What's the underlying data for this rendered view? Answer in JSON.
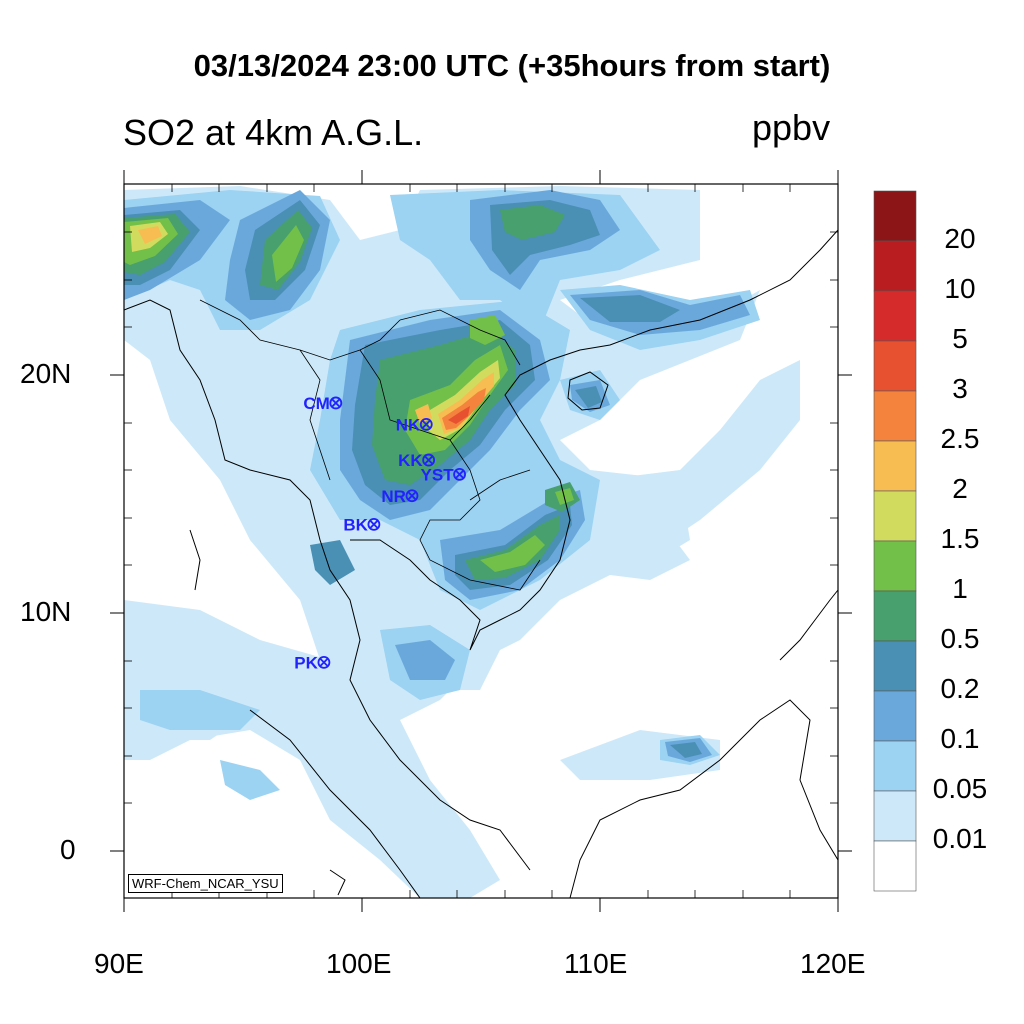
{
  "title": "03/13/2024 23:00 UTC (+35hours from start)",
  "subtitle": "SO2 at 4km A.G.L.",
  "units": "ppbv",
  "credit": "WRF-Chem_NCAR_YSU",
  "lat_labels": [
    "20N",
    "10N",
    "0"
  ],
  "lon_labels": [
    "90E",
    "100E",
    "110E",
    "120E"
  ],
  "colorbar": {
    "labels": [
      "20",
      "10",
      "5",
      "3",
      "2.5",
      "2",
      "1.5",
      "1",
      "0.5",
      "0.2",
      "0.1",
      "0.05",
      "0.01"
    ],
    "colors": [
      "#8b1517",
      "#b91d20",
      "#d62b2b",
      "#e8512f",
      "#f3833d",
      "#f7bd52",
      "#d1dc5e",
      "#72bf4a",
      "#47a06d",
      "#4a90b5",
      "#6aa8dc",
      "#9cd2f2",
      "#cde9f9",
      "#ffffff"
    ]
  },
  "stations": [
    {
      "name": "CM",
      "lon": 98.9,
      "lat": 18.8
    },
    {
      "name": "NK",
      "lon": 102.7,
      "lat": 17.9
    },
    {
      "name": "KK",
      "lon": 102.8,
      "lat": 16.4
    },
    {
      "name": "YST",
      "lon": 104.1,
      "lat": 15.8
    },
    {
      "name": "NR",
      "lon": 102.1,
      "lat": 14.9
    },
    {
      "name": "BK",
      "lon": 100.5,
      "lat": 13.7
    },
    {
      "name": "PK",
      "lon": 98.4,
      "lat": 7.9
    }
  ],
  "station_color": "#2222ff"
}
